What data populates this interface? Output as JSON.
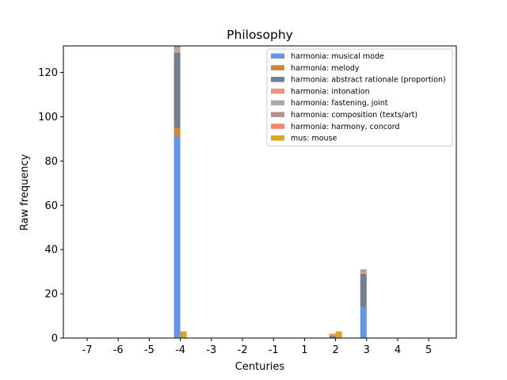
{
  "chart_data": {
    "type": "bar",
    "stacked": true,
    "title": "Philosophy",
    "xlabel": "Centuries",
    "ylabel": "Raw frequency",
    "xticks": [
      -7,
      -6,
      -5,
      -4,
      -3,
      -2,
      -1,
      1,
      2,
      3,
      4,
      5
    ],
    "xtick_labels": [
      "-7",
      "-6",
      "-5",
      "-4",
      "-3",
      "-2",
      "-1",
      "1",
      "2",
      "3",
      "4",
      "5"
    ],
    "yticks": [
      0,
      20,
      40,
      60,
      80,
      100,
      120
    ],
    "ylim": [
      0,
      132
    ],
    "grid": false,
    "legend_position": "top-right",
    "groups": [
      {
        "century": -4,
        "stacks": [
          {
            "offset": "left",
            "segments": [
              {
                "series": "harmonia: musical mode",
                "value": 91
              },
              {
                "series": "harmonia: melody",
                "value": 4
              },
              {
                "series": "harmonia: abstract rationale (proportion)",
                "value": 34
              },
              {
                "series": "harmonia: intonation",
                "value": 1
              },
              {
                "series": "harmonia: fastening, joint",
                "value": 1
              },
              {
                "series": "harmonia: composition (texts/art)",
                "value": 1
              }
            ]
          },
          {
            "offset": "right",
            "segments": [
              {
                "series": "mus: mouse",
                "value": 3
              }
            ]
          }
        ]
      },
      {
        "century": 2,
        "stacks": [
          {
            "offset": "left",
            "segments": [
              {
                "series": "harmonia: abstract rationale (proportion)",
                "value": 1
              },
              {
                "series": "harmonia: intonation",
                "value": 1
              }
            ]
          },
          {
            "offset": "right",
            "segments": [
              {
                "series": "mus: mouse",
                "value": 3
              }
            ]
          }
        ]
      },
      {
        "century": 3,
        "stacks": [
          {
            "offset": "left",
            "segments": [
              {
                "series": "harmonia: musical mode",
                "value": 14
              },
              {
                "series": "harmonia: abstract rationale (proportion)",
                "value": 15
              },
              {
                "series": "harmonia: intonation",
                "value": 1
              },
              {
                "series": "harmonia: composition (texts/art)",
                "value": 1
              }
            ]
          }
        ]
      }
    ],
    "legend": [
      {
        "name": "harmonia: musical mode",
        "color": "#6495ed"
      },
      {
        "name": "harmonia: melody",
        "color": "#cd853f"
      },
      {
        "name": "harmonia: abstract rationale (proportion)",
        "color": "#708090"
      },
      {
        "name": "harmonia: intonation",
        "color": "#e9967a"
      },
      {
        "name": "harmonia: fastening, joint",
        "color": "#a9a9a9"
      },
      {
        "name": "harmonia: composition (texts/art)",
        "color": "#bc8f8f"
      },
      {
        "name": "harmonia: harmony, concord",
        "color": "#fa8072"
      },
      {
        "name": "mus: mouse",
        "color": "#daa520"
      }
    ]
  }
}
